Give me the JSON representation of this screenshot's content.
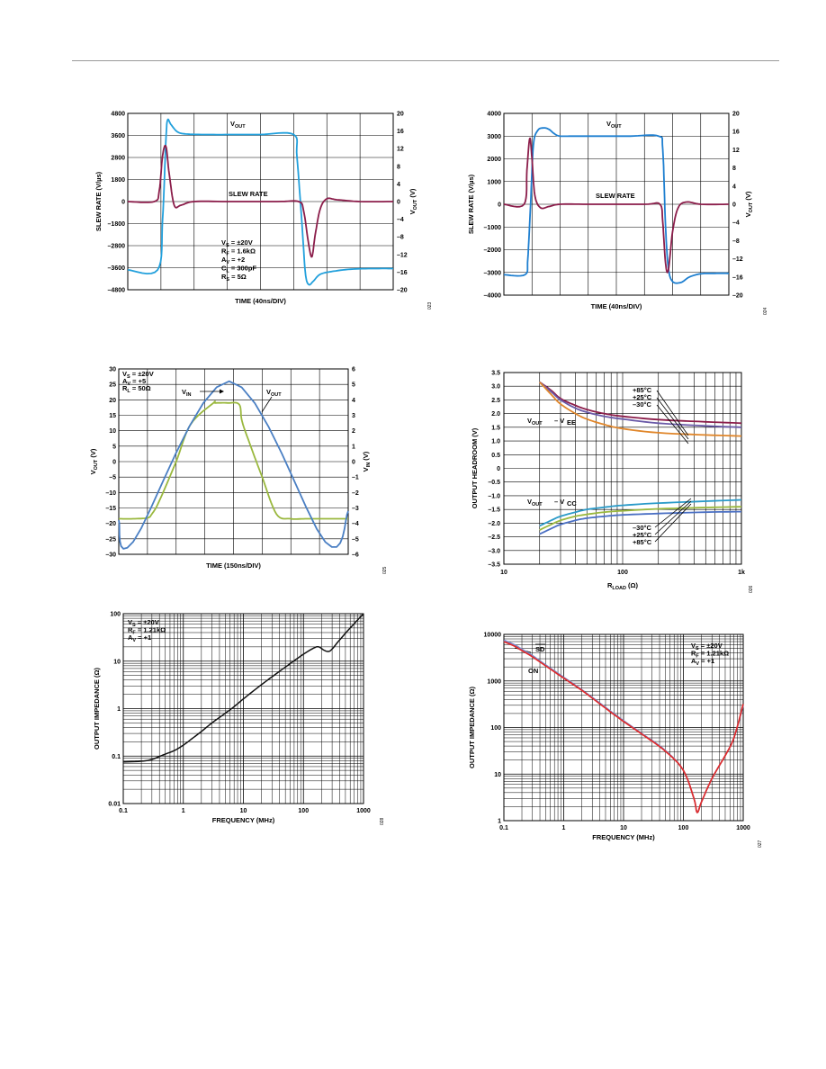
{
  "chart_data": [
    {
      "type": "line",
      "x_label": "TIME (40ns/DIV)",
      "y_label": "SLEW RATE (V/µs)",
      "y2_label": "VOUT (V)",
      "y_ticks": [
        "4800",
        "3600",
        "2800",
        "1800",
        "0",
        "–1800",
        "–2800",
        "–3600",
        "–4800"
      ],
      "y2_ticks": [
        "20",
        "16",
        "12",
        "8",
        "4",
        "0",
        "–4",
        "–8",
        "–12",
        "–16",
        "–20"
      ],
      "labels": {
        "vout": "VOUT",
        "slew": "SLEW RATE"
      },
      "conditions": [
        "VS = ±20V",
        "RF = 1.6kΩ",
        "AV = +2",
        "CL = 300pF",
        "RS = 5Ω"
      ],
      "fig_no": "023",
      "colors": {
        "vout": "#22a0dc",
        "slew": "#8b1d4a"
      },
      "series": [
        {
          "key": "vout",
          "axis": "right",
          "x": [
            0,
            0.9,
            1.05,
            1.15,
            1.2,
            1.3,
            1.5,
            1.8,
            2.5,
            3.2,
            4.0,
            5.0,
            5.1,
            5.25,
            5.35,
            5.45,
            5.6,
            5.8,
            6.2,
            6.8,
            7.5,
            8.0
          ],
          "y": [
            -15.5,
            -15.5,
            -4,
            14,
            18.5,
            17.5,
            15.8,
            15.3,
            15.2,
            15.2,
            15.2,
            15.2,
            10,
            -5,
            -16,
            -18.8,
            -18,
            -16.5,
            -15.8,
            -15.3,
            -15.2,
            -15.2
          ]
        },
        {
          "key": "slew",
          "axis": "left",
          "x": [
            0,
            0.8,
            0.95,
            1.05,
            1.15,
            1.25,
            1.4,
            1.6,
            2.0,
            3.0,
            4.5,
            5.15,
            5.3,
            5.45,
            5.55,
            5.65,
            5.8,
            6.0,
            6.3,
            7.0,
            8.0
          ],
          "y": [
            0,
            0,
            600,
            2500,
            3000,
            1500,
            -200,
            -200,
            0,
            0,
            0,
            0,
            -500,
            -2300,
            -3000,
            -1800,
            -400,
            150,
            100,
            0,
            0
          ]
        }
      ]
    },
    {
      "type": "line",
      "x_label": "TIME (40ns/DIV)",
      "y_label": "SLEW RATE (V/µs)",
      "y2_label": "VOUT (V)",
      "y_ticks": [
        "4000",
        "3000",
        "2000",
        "1000",
        "0",
        "–1000",
        "–2000",
        "–3000",
        "–4000"
      ],
      "y2_ticks": [
        "20",
        "16",
        "12",
        "8",
        "4",
        "0",
        "–4",
        "–8",
        "–12",
        "–16",
        "–20"
      ],
      "labels": {
        "vout": "VOUT",
        "slew": "SLEW RATE"
      },
      "conditions": [],
      "fig_no": "024",
      "colors": {
        "vout": "#1e7fd0",
        "slew": "#8b1d4a"
      },
      "series": [
        {
          "key": "vout",
          "axis": "right",
          "x": [
            0,
            0.75,
            0.85,
            0.95,
            1.05,
            1.2,
            1.4,
            1.6,
            1.8,
            2.0,
            2.5,
            3.5,
            4.5,
            5.5,
            5.65,
            5.75,
            5.85,
            6.0,
            6.3,
            6.6,
            7.0,
            7.5,
            8.0
          ],
          "y": [
            -15.5,
            -15.5,
            -12,
            0,
            13,
            16.2,
            16.8,
            16.5,
            15.5,
            15,
            15,
            15,
            15,
            15,
            12,
            -5,
            -14,
            -17,
            -17.2,
            -16,
            -15.3,
            -15.2,
            -15.2
          ]
        },
        {
          "key": "slew",
          "axis": "left",
          "x": [
            0,
            0.72,
            0.82,
            0.92,
            1.0,
            1.1,
            1.3,
            1.6,
            2.0,
            3.0,
            5.0,
            5.55,
            5.65,
            5.75,
            5.85,
            6.0,
            6.2,
            6.5,
            7.0,
            8.0
          ],
          "y": [
            0,
            0,
            1500,
            2900,
            2000,
            400,
            -150,
            -100,
            0,
            0,
            0,
            0,
            -800,
            -2600,
            -2900,
            -1200,
            -150,
            100,
            0,
            0
          ]
        }
      ]
    },
    {
      "type": "line",
      "x_label": "TIME (150ns/DIV)",
      "y_label": "VOUT (V)",
      "y2_label": "VIN (V)",
      "y_ticks": [
        "30",
        "25",
        "20",
        "15",
        "10",
        "5",
        "0",
        "–5",
        "–10",
        "–15",
        "–20",
        "–25",
        "–30"
      ],
      "y2_ticks": [
        "6",
        "5",
        "4",
        "3",
        "2",
        "1",
        "0",
        "–1",
        "–2",
        "–3",
        "–4",
        "–5",
        "–6"
      ],
      "labels": {
        "vin": "VIN",
        "vout": "VOUT"
      },
      "conditions": [
        "VS = ±20V",
        "AV = +5",
        "RL = 50Ω"
      ],
      "fig_no": "025",
      "colors": {
        "vout": "#9ab83e",
        "vin": "#4a7fc3"
      },
      "series": [
        {
          "key": "vout",
          "axis": "left",
          "x": [
            0,
            0.5,
            1.0,
            1.15,
            1.4,
            2.0,
            2.5,
            3.3,
            3.35,
            3.8,
            4.2,
            4.3,
            4.6,
            5.0,
            5.5,
            6.0,
            6.5,
            7.0,
            7.5,
            8.0
          ],
          "y": [
            -18.5,
            -18.5,
            -18.2,
            -17,
            -13,
            0,
            12,
            19,
            19,
            19,
            18.5,
            13,
            5,
            -5,
            -17,
            -18.5,
            -18.5,
            -18.5,
            -18.5,
            -18.5
          ]
        },
        {
          "key": "vin",
          "axis": "right",
          "x": [
            0,
            0.5,
            3.85,
            7.2,
            8.0
          ],
          "y": [
            -3.8,
            -5.2,
            5.2,
            -5.2,
            -3.2
          ]
        }
      ]
    },
    {
      "type": "line",
      "x_label": "RLOAD (Ω)",
      "y_label": "OUTPUT HEADROOM (V)",
      "x_ticks": [
        "10",
        "100",
        "1k"
      ],
      "y_ticks": [
        "3.5",
        "3.0",
        "2.5",
        "2.0",
        "1.5",
        "1.0",
        "0.5",
        "0",
        "–0.5",
        "–1.0",
        "–1.5",
        "–2.0",
        "–2.5",
        "–3.0",
        "–3.5"
      ],
      "labels": {
        "vee": "VOUT – VEE",
        "vcc": "VOUT – VCC",
        "t_top_1": "+85°C",
        "t_top_2": "+25°C",
        "t_top_3": "–30°C",
        "t_bot_1": "–30°C",
        "t_bot_2": "+25°C",
        "t_bot_3": "+85°C"
      },
      "conditions": [],
      "fig_no": "026",
      "series": [
        {
          "color": "#8b1d4a",
          "x": [
            20,
            25,
            30,
            40,
            50,
            70,
            100,
            200,
            500,
            1000
          ],
          "y": [
            3.15,
            2.85,
            2.55,
            2.3,
            2.15,
            2.0,
            1.9,
            1.78,
            1.7,
            1.65
          ]
        },
        {
          "color": "#6a5aa8",
          "x": [
            20,
            25,
            30,
            40,
            50,
            70,
            100,
            200,
            500,
            1000
          ],
          "y": [
            3.15,
            2.8,
            2.5,
            2.2,
            2.05,
            1.9,
            1.8,
            1.65,
            1.55,
            1.5
          ]
        },
        {
          "color": "#e0862a",
          "x": [
            20,
            25,
            30,
            40,
            50,
            70,
            100,
            200,
            500,
            1000
          ],
          "y": [
            3.15,
            2.7,
            2.35,
            2.0,
            1.8,
            1.6,
            1.45,
            1.3,
            1.22,
            1.18
          ]
        },
        {
          "color": "#2a9ac8",
          "x": [
            20,
            25,
            30,
            40,
            50,
            70,
            100,
            200,
            500,
            1000
          ],
          "y": [
            -2.1,
            -1.9,
            -1.75,
            -1.6,
            -1.5,
            -1.42,
            -1.35,
            -1.27,
            -1.2,
            -1.15
          ]
        },
        {
          "color": "#9ab83e",
          "x": [
            20,
            25,
            30,
            40,
            50,
            70,
            100,
            200,
            500,
            1000
          ],
          "y": [
            -2.25,
            -2.05,
            -1.9,
            -1.75,
            -1.68,
            -1.6,
            -1.55,
            -1.48,
            -1.43,
            -1.4
          ]
        },
        {
          "color": "#4a6fc3",
          "x": [
            20,
            25,
            30,
            40,
            50,
            70,
            100,
            200,
            500,
            1000
          ],
          "y": [
            -2.4,
            -2.2,
            -2.05,
            -1.9,
            -1.82,
            -1.75,
            -1.7,
            -1.65,
            -1.6,
            -1.58
          ]
        }
      ]
    },
    {
      "type": "line",
      "x_label": "FREQUENCY (MHz)",
      "y_label": "OUTPUT IMPEDANCE (Ω)",
      "x_ticks": [
        "0.1",
        "1",
        "10",
        "100",
        "1000"
      ],
      "y_ticks": [
        "100",
        "10",
        "1",
        "0.1",
        "0.01"
      ],
      "conditions": [
        "VS = ±20V",
        "RF = 1.21kΩ",
        "AV = +1"
      ],
      "fig_no": "028",
      "series": [
        {
          "color": "#111111",
          "x": [
            0.1,
            0.2,
            0.3,
            0.5,
            0.7,
            1,
            1.5,
            2,
            3,
            5,
            7,
            10,
            20,
            50,
            100,
            150,
            180,
            220,
            260,
            300,
            400,
            600,
            1000
          ],
          "y": [
            0.075,
            0.078,
            0.085,
            0.11,
            0.13,
            0.17,
            0.25,
            0.33,
            0.5,
            0.8,
            1.1,
            1.6,
            3.2,
            7.5,
            14,
            19,
            20,
            17,
            16,
            18,
            28,
            50,
            100
          ]
        }
      ]
    },
    {
      "type": "line",
      "x_label": "FREQUENCY  (MHz)",
      "y_label": "OUTPUT IMPEDANCE  (Ω)",
      "x_ticks": [
        "0.1",
        "1",
        "10",
        "100",
        "1000"
      ],
      "y_ticks": [
        "10000",
        "1000",
        "100",
        "10",
        "1"
      ],
      "labels": {
        "sd": "SD",
        "on": "ON"
      },
      "conditions": [
        "VS = ±20V",
        "RF = 1.21kΩ",
        "AV = +1"
      ],
      "fig_no": "027",
      "series": [
        {
          "color": "#7a8fd0",
          "x": [
            0.1,
            0.15,
            0.2,
            0.3,
            0.5,
            1,
            2,
            5,
            10,
            20,
            50,
            100,
            150,
            170,
            200,
            300,
            500,
            700,
            1000
          ],
          "y": [
            7500,
            6000,
            4800,
            3500,
            2200,
            1200,
            650,
            270,
            140,
            75,
            32,
            12,
            3,
            1.5,
            2.5,
            8,
            25,
            60,
            300
          ]
        },
        {
          "color": "#e02b2b",
          "x": [
            0.1,
            0.15,
            0.2,
            0.3,
            0.5,
            1,
            2,
            5,
            10,
            20,
            50,
            100,
            150,
            170,
            200,
            300,
            500,
            700,
            1000
          ],
          "y": [
            7000,
            5600,
            4500,
            3300,
            2100,
            1150,
            630,
            260,
            135,
            73,
            31,
            12,
            3,
            1.5,
            2.5,
            8,
            25,
            60,
            320
          ]
        }
      ]
    }
  ]
}
